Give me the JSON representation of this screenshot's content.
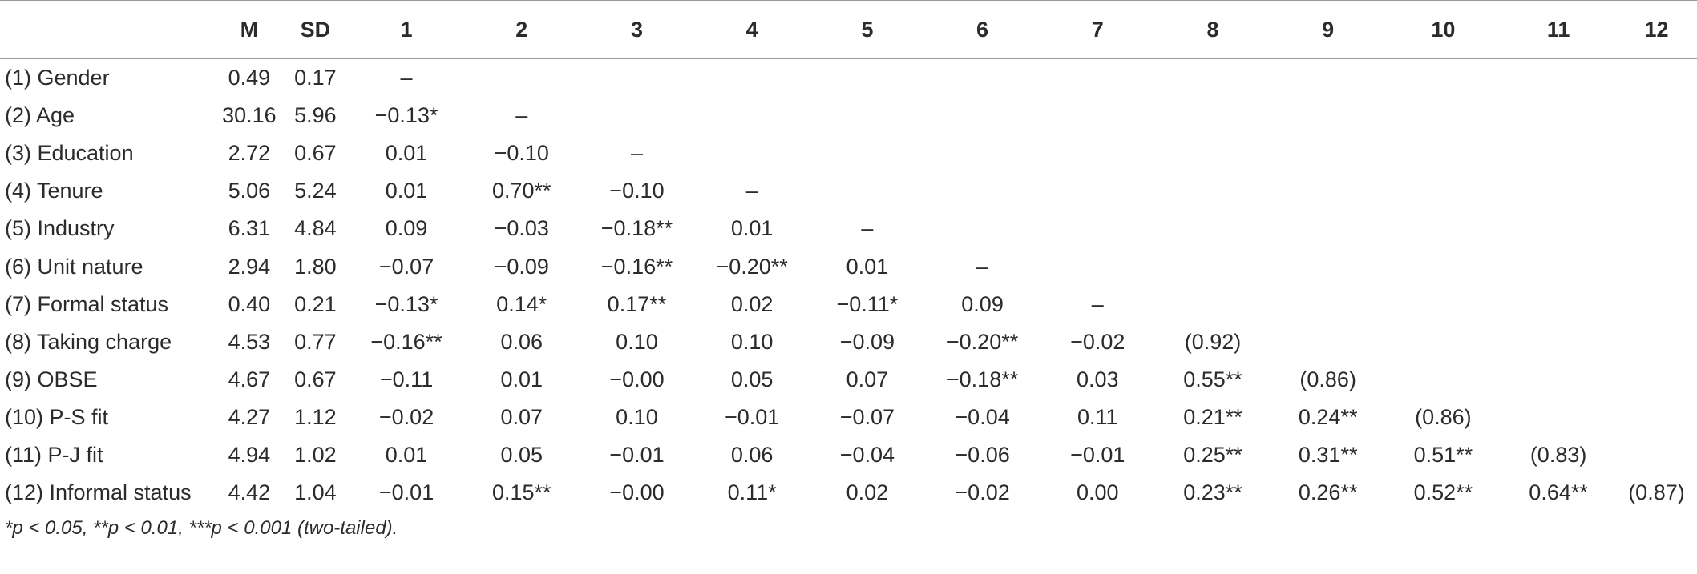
{
  "header": [
    "",
    "M",
    "SD",
    "1",
    "2",
    "3",
    "4",
    "5",
    "6",
    "7",
    "8",
    "9",
    "10",
    "11",
    "12"
  ],
  "rows": [
    [
      "(1) Gender",
      "0.49",
      "0.17",
      "–",
      "",
      "",
      "",
      "",
      "",
      "",
      "",
      "",
      "",
      "",
      ""
    ],
    [
      "(2) Age",
      "30.16",
      "5.96",
      "−0.13*",
      "–",
      "",
      "",
      "",
      "",
      "",
      "",
      "",
      "",
      "",
      ""
    ],
    [
      "(3) Education",
      "2.72",
      "0.67",
      "0.01",
      "−0.10",
      "–",
      "",
      "",
      "",
      "",
      "",
      "",
      "",
      "",
      ""
    ],
    [
      "(4) Tenure",
      "5.06",
      "5.24",
      "0.01",
      "0.70**",
      "−0.10",
      "–",
      "",
      "",
      "",
      "",
      "",
      "",
      "",
      ""
    ],
    [
      "(5) Industry",
      "6.31",
      "4.84",
      "0.09",
      "−0.03",
      "−0.18**",
      "0.01",
      "–",
      "",
      "",
      "",
      "",
      "",
      "",
      ""
    ],
    [
      "(6) Unit nature",
      "2.94",
      "1.80",
      "−0.07",
      "−0.09",
      "−0.16**",
      "−0.20**",
      "0.01",
      "–",
      "",
      "",
      "",
      "",
      "",
      ""
    ],
    [
      "(7) Formal status",
      "0.40",
      "0.21",
      "−0.13*",
      "0.14*",
      "0.17**",
      "0.02",
      "−0.11*",
      "0.09",
      "–",
      "",
      "",
      "",
      "",
      ""
    ],
    [
      "(8) Taking charge",
      "4.53",
      "0.77",
      "−0.16**",
      "0.06",
      "0.10",
      "0.10",
      "−0.09",
      "−0.20**",
      "−0.02",
      "(0.92)",
      "",
      "",
      "",
      ""
    ],
    [
      "(9) OBSE",
      "4.67",
      "0.67",
      "−0.11",
      "0.01",
      "−0.00",
      "0.05",
      "0.07",
      "−0.18**",
      "0.03",
      "0.55**",
      "(0.86)",
      "",
      "",
      ""
    ],
    [
      "(10) P-S fit",
      "4.27",
      "1.12",
      "−0.02",
      "0.07",
      "0.10",
      "−0.01",
      "−0.07",
      "−0.04",
      "0.11",
      "0.21**",
      "0.24**",
      "(0.86)",
      "",
      ""
    ],
    [
      "(11) P-J fit",
      "4.94",
      "1.02",
      "0.01",
      "0.05",
      "−0.01",
      "0.06",
      "−0.04",
      "−0.06",
      "−0.01",
      "0.25**",
      "0.31**",
      "0.51**",
      "(0.83)",
      ""
    ],
    [
      "(12) Informal status",
      "4.42",
      "1.04",
      "−0.01",
      "0.15**",
      "−0.00",
      "0.11*",
      "0.02",
      "−0.02",
      "0.00",
      "0.23**",
      "0.26**",
      "0.52**",
      "0.64**",
      "(0.87)"
    ]
  ],
  "note": "*p < 0.05, **p < 0.01, ***p < 0.001 (two-tailed)."
}
